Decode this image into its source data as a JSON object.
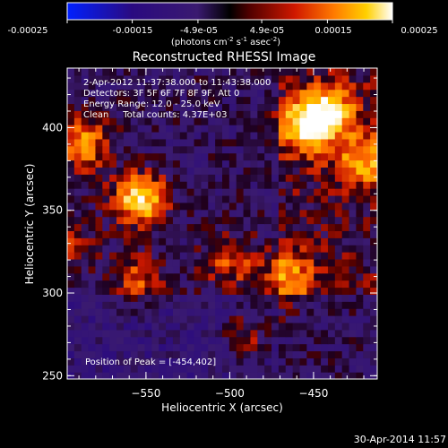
{
  "colorbar": {
    "ticks": [
      "-0.00025",
      "-0.00015",
      "-4.9e-05",
      "4.9e-05",
      "0.00015",
      "0.00025"
    ],
    "units_main": "(photons cm",
    "units_sup1": "-2",
    "units_mid": " s",
    "units_sup2": "-1",
    "units_end": " asec",
    "units_sup3": "-2",
    "units_close": ")"
  },
  "chart_data": {
    "type": "heatmap",
    "title": "Reconstructed RHESSI Image",
    "xlabel": "Heliocentric X (arcsec)",
    "ylabel": "Heliocentric Y (arcsec)",
    "xlim": [
      -597,
      -412
    ],
    "ylim": [
      248,
      436
    ],
    "xticks": [
      -550,
      -500,
      -450
    ],
    "yticks": [
      250,
      300,
      350,
      400
    ],
    "clim": [
      -0.00025,
      0.00025
    ],
    "colormap": "blue-black-purple-red-yellow-white",
    "peaks": [
      {
        "x": -554,
        "y": 357,
        "value": 0.00025
      },
      {
        "x": -454,
        "y": 402,
        "value": 0.00025
      },
      {
        "x": -588,
        "y": 390,
        "value": 0.00018
      },
      {
        "x": -440,
        "y": 410,
        "value": 0.00018
      },
      {
        "x": -420,
        "y": 380,
        "value": 0.00017
      },
      {
        "x": -465,
        "y": 310,
        "value": 0.00016
      },
      {
        "x": -555,
        "y": 308,
        "value": 0.00012
      },
      {
        "x": -500,
        "y": 320,
        "value": 0.00013
      },
      {
        "x": -595,
        "y": 330,
        "value": 0.0001
      },
      {
        "x": -490,
        "y": 275,
        "value": 0.0001
      }
    ],
    "annotations": {
      "time": "2-Apr-2012 11:37:38.000 to 11:43:38.000",
      "detectors": "Detectors: 3F 5F 6F 7F 8F 9F, Att 0",
      "energy": "Energy Range: 12.0 - 25.0 keV",
      "method_counts": "Clean     Total counts: 4.37E+03",
      "peak": "Position of Peak = [-454,402]"
    }
  },
  "footer": {
    "date": "30-Apr-2014 11:57"
  }
}
